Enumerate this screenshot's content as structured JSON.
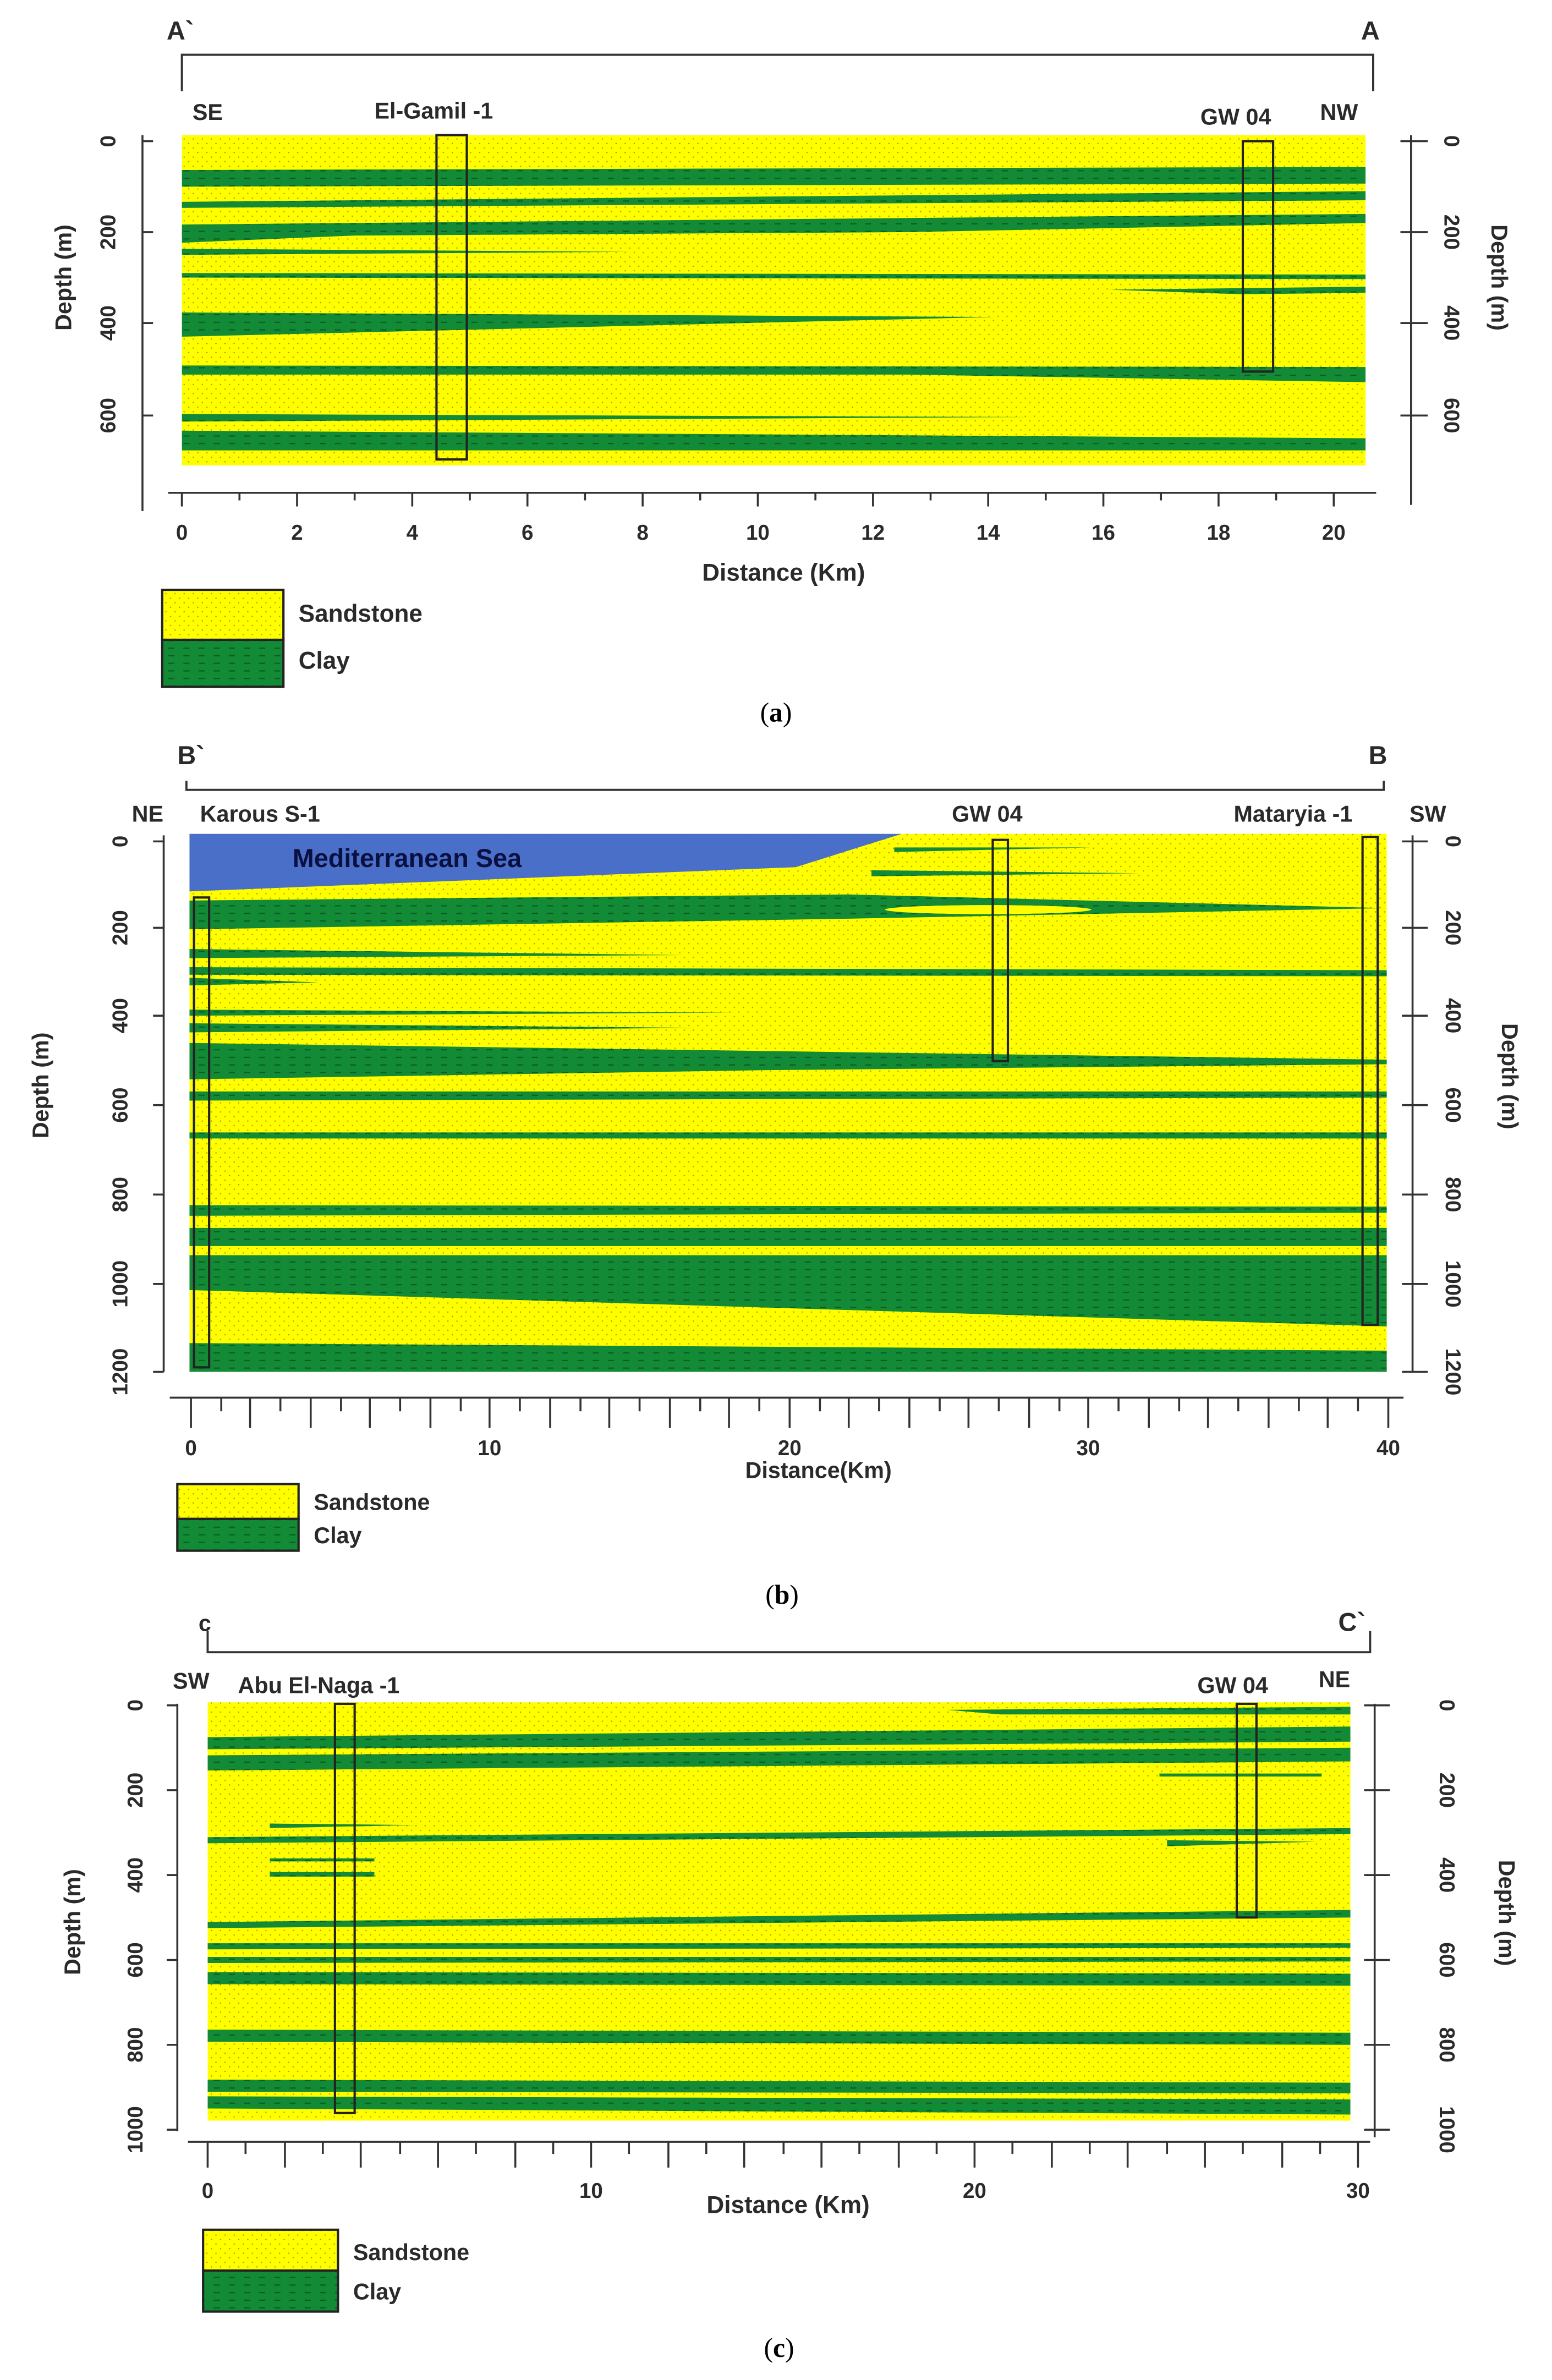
{
  "colors": {
    "sandstone": "#ffff00",
    "clay": "#138a36",
    "sea": "#4a6fc8",
    "outline": "#1a1a1a"
  },
  "sections": [
    {
      "id": "a",
      "caption": "a",
      "label_left": "A`",
      "label_right": "A",
      "dir_left": "SE",
      "dir_right": "NW",
      "wells": [
        {
          "name": "El-Gamil -1",
          "x_km": 4.7,
          "top": 0,
          "bottom": 690
        },
        {
          "name": "GW 04",
          "x_km": 18.6,
          "top": 0,
          "bottom": 500
        }
      ],
      "x_label": "Distance (Km)",
      "y_label_left": "Depth (m)",
      "y_label_right": "Depth (m)",
      "x_ticks": [
        "0",
        "2",
        "4",
        "6",
        "8",
        "10",
        "12",
        "14",
        "16",
        "18",
        "20"
      ],
      "y_ticks": [
        "0",
        "200",
        "400",
        "600"
      ],
      "x_max": 20.5,
      "y_max": 700,
      "legend": {
        "sandstone": "Sandstone",
        "clay": "Clay"
      }
    },
    {
      "id": "b",
      "caption": "b",
      "label_left": "B`",
      "label_right": "B",
      "dir_left": "NE",
      "dir_right": "SW",
      "sea_label": "Mediterranean Sea",
      "wells": [
        {
          "name": "Karous S-1",
          "x_km": 0.4,
          "top": 130,
          "bottom": 1190
        },
        {
          "name": "GW 04",
          "x_km": 27,
          "top": 0,
          "bottom": 500
        },
        {
          "name": "Mataryia -1",
          "x_km": 39.2,
          "top": 0,
          "bottom": 1100
        }
      ],
      "x_label": "Distance(Km)",
      "y_label_left": "Depth (m)",
      "y_label_right": "Depth (m)",
      "x_ticks": [
        "0",
        "10",
        "20",
        "30",
        "40"
      ],
      "y_ticks": [
        "0",
        "200",
        "400",
        "600",
        "800",
        "1000",
        "1200"
      ],
      "x_max": 40,
      "y_max": 1200,
      "legend": {
        "sandstone": "Sandstone",
        "clay": "Clay"
      }
    },
    {
      "id": "c",
      "caption": "c",
      "label_left": "c",
      "label_right": "C`",
      "dir_left": "SW",
      "dir_right": "NE",
      "wells": [
        {
          "name": "Abu El-Naga -1",
          "x_km": 3.6,
          "top": 0,
          "bottom": 970
        },
        {
          "name": "GW 04",
          "x_km": 27.2,
          "top": 0,
          "bottom": 500
        }
      ],
      "x_label": "Distance (Km)",
      "y_label_left": "Depth (m)",
      "y_label_right": "Depth (m)",
      "x_ticks": [
        "0",
        "10",
        "20",
        "30"
      ],
      "y_ticks": [
        "0",
        "200",
        "400",
        "600",
        "800",
        "1000"
      ],
      "x_max": 30,
      "y_max": 1000,
      "legend": {
        "sandstone": "Sandstone",
        "clay": "Clay"
      }
    }
  ]
}
